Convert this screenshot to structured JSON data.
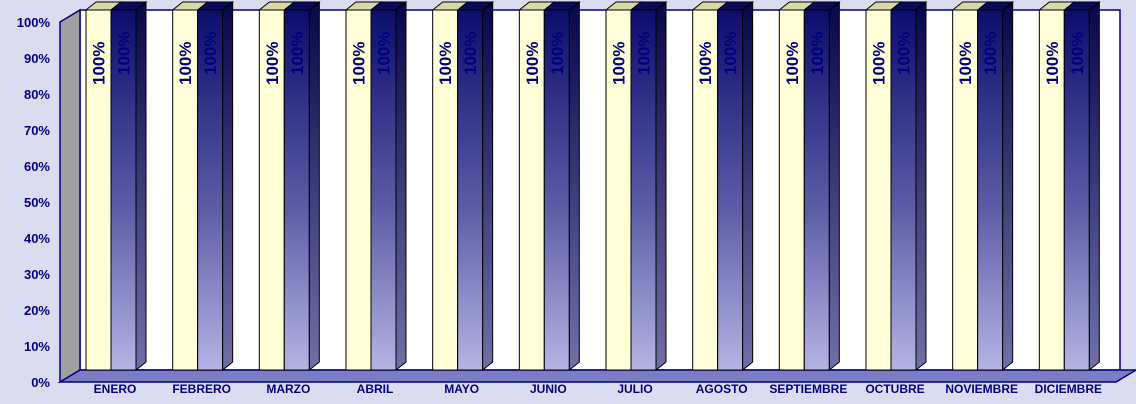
{
  "chart_data": {
    "type": "bar",
    "title": "",
    "xlabel": "",
    "ylabel": "",
    "ylim": [
      0,
      100
    ],
    "y_ticks": [
      "0%",
      "10%",
      "20%",
      "30%",
      "40%",
      "50%",
      "60%",
      "70%",
      "80%",
      "90%",
      "100%"
    ],
    "categories": [
      "ENERO",
      "FEBRERO",
      "MARZO",
      "ABRIL",
      "MAYO",
      "JUNIO",
      "JULIO",
      "AGOSTO",
      "SEPTIEMBRE",
      "OCTUBRE",
      "NOVIEMBRE",
      "DICIEMBRE"
    ],
    "series": [
      {
        "values": [
          100,
          100,
          100,
          100,
          100,
          100,
          100,
          100,
          100,
          100,
          100,
          100
        ],
        "labels": [
          "100%",
          "100%",
          "100%",
          "100%",
          "100%",
          "100%",
          "100%",
          "100%",
          "100%",
          "100%",
          "100%",
          "100%"
        ],
        "color": "#ffffd8"
      },
      {
        "values": [
          100,
          100,
          100,
          100,
          100,
          100,
          100,
          100,
          100,
          100,
          100,
          100
        ],
        "labels": [
          "100%",
          "100%",
          "100%",
          "100%",
          "100%",
          "100%",
          "100%",
          "100%",
          "100%",
          "100%",
          "100%",
          "100%"
        ],
        "color": "#14146e"
      }
    ],
    "grid": false,
    "legend": "none",
    "three_d": true,
    "colors": {
      "background": "#dcdcf0",
      "plot_wall": "#ffffff",
      "side_wall": "#a0a0a0",
      "floor": "#7c7cc4",
      "axis_text": "#000080"
    }
  }
}
